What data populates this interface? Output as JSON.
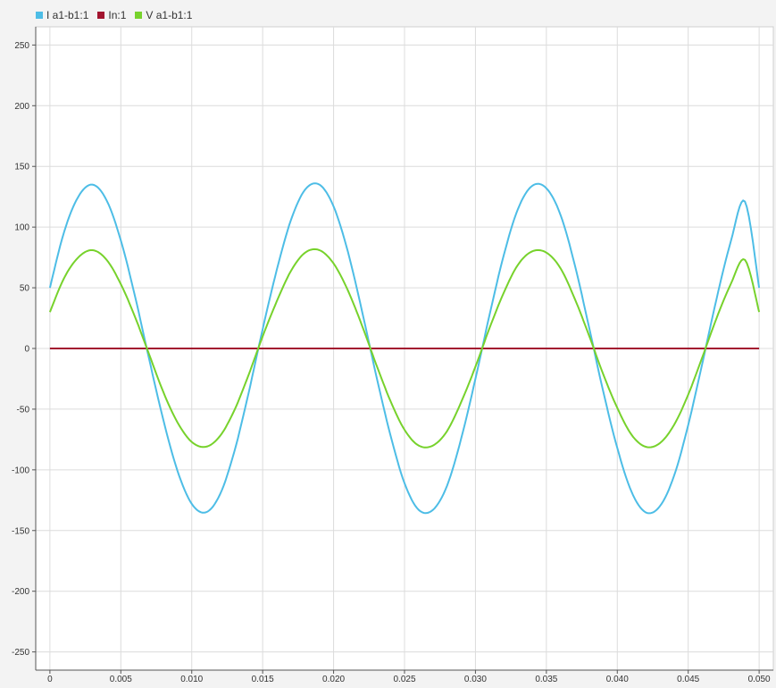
{
  "chart_data": {
    "type": "line",
    "title": "",
    "xlabel": "",
    "ylabel": "",
    "xlim": [
      -0.001,
      0.051
    ],
    "ylim": [
      -265,
      265
    ],
    "x_ticks": [
      0,
      0.005,
      0.01,
      0.015,
      0.02,
      0.025,
      0.03,
      0.035,
      0.04,
      0.045,
      0.05
    ],
    "x_tick_labels": [
      "0",
      "0.005",
      "0.010",
      "0.015",
      "0.020",
      "0.025",
      "0.030",
      "0.035",
      "0.040",
      "0.045",
      "0.050"
    ],
    "y_ticks": [
      250,
      200,
      150,
      100,
      50,
      0,
      -50,
      -100,
      -150,
      -200,
      -250
    ],
    "y_tick_labels": [
      "250",
      "200",
      "150",
      "100",
      "50",
      "0",
      "-50",
      "-100",
      "-150",
      "-200",
      "-250"
    ],
    "grid": true,
    "legend_position": "top-left",
    "series": [
      {
        "name": "I a1-b1:1",
        "color": "#4dbde6",
        "x": [
          0,
          0.001,
          0.002,
          0.003,
          0.004,
          0.005,
          0.006,
          0.007,
          0.008,
          0.009,
          0.01,
          0.011,
          0.012,
          0.013,
          0.014,
          0.015,
          0.016,
          0.017,
          0.018,
          0.019,
          0.02,
          0.021,
          0.022,
          0.023,
          0.024,
          0.025,
          0.026,
          0.027,
          0.028,
          0.029,
          0.03,
          0.031,
          0.032,
          0.033,
          0.034,
          0.035,
          0.036,
          0.037,
          0.038,
          0.039,
          0.04,
          0.041,
          0.042,
          0.043,
          0.044,
          0.045,
          0.046,
          0.047,
          0.048,
          0.049,
          0.05
        ],
        "y": [
          50,
          96,
          125,
          135,
          122,
          89,
          43,
          -9,
          -59,
          -101,
          -128,
          -135,
          -120,
          -85,
          -37,
          16,
          65,
          106,
          131,
          135,
          117,
          80,
          31,
          -22,
          -71,
          -111,
          -133,
          -133,
          -113,
          -74,
          -25,
          28,
          77,
          115,
          134,
          132,
          110,
          69,
          18,
          -35,
          -82,
          -118,
          -135,
          -130,
          -105,
          -63,
          -12,
          41,
          88,
          121,
          50
        ]
      },
      {
        "name": "In:1",
        "color": "#a2142f",
        "x": [
          0,
          0.05
        ],
        "y": [
          0,
          0
        ]
      },
      {
        "name": "V a1-b1:1",
        "color": "#77d22c",
        "x": [
          0,
          0.001,
          0.002,
          0.003,
          0.004,
          0.005,
          0.006,
          0.007,
          0.008,
          0.009,
          0.01,
          0.011,
          0.012,
          0.013,
          0.014,
          0.015,
          0.016,
          0.017,
          0.018,
          0.019,
          0.02,
          0.021,
          0.022,
          0.023,
          0.024,
          0.025,
          0.026,
          0.027,
          0.028,
          0.029,
          0.03,
          0.031,
          0.032,
          0.033,
          0.034,
          0.035,
          0.036,
          0.037,
          0.038,
          0.039,
          0.04,
          0.041,
          0.042,
          0.043,
          0.044,
          0.045,
          0.046,
          0.047,
          0.048,
          0.049,
          0.05
        ],
        "y": [
          30,
          58,
          75,
          81,
          73,
          53,
          26,
          -5,
          -36,
          -61,
          -77,
          -81,
          -72,
          -51,
          -22,
          10,
          39,
          64,
          79,
          81,
          70,
          48,
          19,
          -13,
          -43,
          -67,
          -80,
          -80,
          -68,
          -44,
          -15,
          17,
          46,
          69,
          80,
          79,
          66,
          41,
          11,
          -21,
          -49,
          -71,
          -81,
          -78,
          -63,
          -38,
          -7,
          25,
          53,
          73,
          30
        ]
      }
    ]
  }
}
